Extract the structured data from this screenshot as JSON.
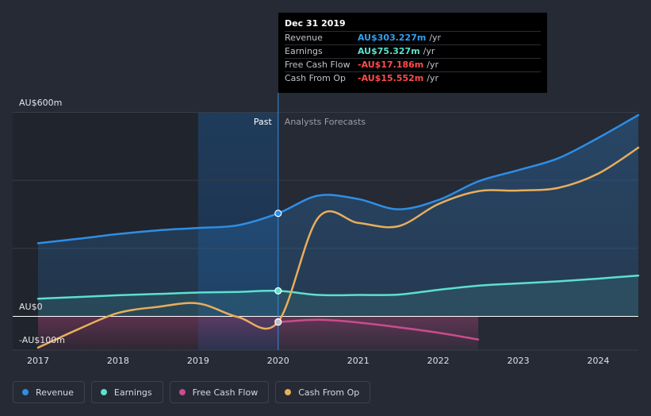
{
  "tooltip": {
    "date": "Dec 31 2019",
    "rows": [
      {
        "label": "Revenue",
        "value": "AU$303.227m",
        "unit": "/yr",
        "color": "#2ea0f2"
      },
      {
        "label": "Earnings",
        "value": "AU$75.327m",
        "unit": "/yr",
        "color": "#5ce0cf"
      },
      {
        "label": "Free Cash Flow",
        "value": "-AU$17.186m",
        "unit": "/yr",
        "color": "#ff4b4b"
      },
      {
        "label": "Cash From Op",
        "value": "-AU$15.552m",
        "unit": "/yr",
        "color": "#ff4b4b"
      }
    ]
  },
  "legend": [
    {
      "label": "Revenue",
      "color": "#2e8ee6"
    },
    {
      "label": "Earnings",
      "color": "#5ce0cf"
    },
    {
      "label": "Free Cash Flow",
      "color": "#c94c8c"
    },
    {
      "label": "Cash From Op",
      "color": "#e8ae5c"
    }
  ],
  "chart_data": {
    "type": "line",
    "title": "",
    "y_tick_labels": [
      "AU$600m",
      "AU$0",
      "-AU$100m"
    ],
    "ylim": [
      -100,
      600
    ],
    "xlim": [
      2017,
      2024.5
    ],
    "x_tick_labels": [
      "2017",
      "2018",
      "2019",
      "2020",
      "2021",
      "2022",
      "2023",
      "2024"
    ],
    "x_ticks": [
      2017,
      2018,
      2019,
      2020,
      2021,
      2022,
      2023,
      2024
    ],
    "past_label": "Past",
    "forecast_label": "Analysts Forecasts",
    "past_end": 2020,
    "highlight_start": 2019,
    "highlight_end": 2020,
    "series": [
      {
        "name": "Revenue",
        "color": "#2e8ee6",
        "points": [
          [
            2017,
            215
          ],
          [
            2017.5,
            228
          ],
          [
            2018,
            242
          ],
          [
            2018.5,
            253
          ],
          [
            2019,
            260
          ],
          [
            2019.5,
            268
          ],
          [
            2020,
            303
          ],
          [
            2020.5,
            355
          ],
          [
            2021,
            345
          ],
          [
            2021.5,
            315
          ],
          [
            2022,
            342
          ],
          [
            2022.5,
            397
          ],
          [
            2023,
            430
          ],
          [
            2023.5,
            465
          ],
          [
            2024,
            525
          ],
          [
            2024.5,
            592
          ]
        ]
      },
      {
        "name": "Earnings",
        "color": "#5ce0cf",
        "points": [
          [
            2017,
            52
          ],
          [
            2017.5,
            57
          ],
          [
            2018,
            62
          ],
          [
            2018.5,
            66
          ],
          [
            2019,
            70
          ],
          [
            2019.5,
            72
          ],
          [
            2020,
            75
          ],
          [
            2020.5,
            63
          ],
          [
            2021,
            63
          ],
          [
            2021.5,
            64
          ],
          [
            2022,
            78
          ],
          [
            2022.5,
            90
          ],
          [
            2023,
            97
          ],
          [
            2023.5,
            103
          ],
          [
            2024,
            111
          ],
          [
            2024.5,
            120
          ]
        ]
      },
      {
        "name": "Free Cash Flow",
        "color": "#c94c8c",
        "points": [
          [
            2020,
            -17
          ],
          [
            2020.5,
            -10
          ],
          [
            2021,
            -18
          ],
          [
            2021.5,
            -32
          ],
          [
            2022,
            -48
          ],
          [
            2022.5,
            -68
          ]
        ]
      },
      {
        "name": "Cash From Op",
        "color": "#e8ae5c",
        "points": [
          [
            2017,
            -92
          ],
          [
            2017.5,
            -38
          ],
          [
            2018,
            10
          ],
          [
            2018.5,
            28
          ],
          [
            2019,
            38
          ],
          [
            2019.5,
            -2
          ],
          [
            2020,
            -16
          ],
          [
            2020.5,
            290
          ],
          [
            2021,
            275
          ],
          [
            2021.5,
            265
          ],
          [
            2022,
            330
          ],
          [
            2022.5,
            368
          ],
          [
            2023,
            370
          ],
          [
            2023.5,
            378
          ],
          [
            2024,
            420
          ],
          [
            2024.5,
            496
          ]
        ]
      }
    ],
    "tooltip_x": 2020
  }
}
